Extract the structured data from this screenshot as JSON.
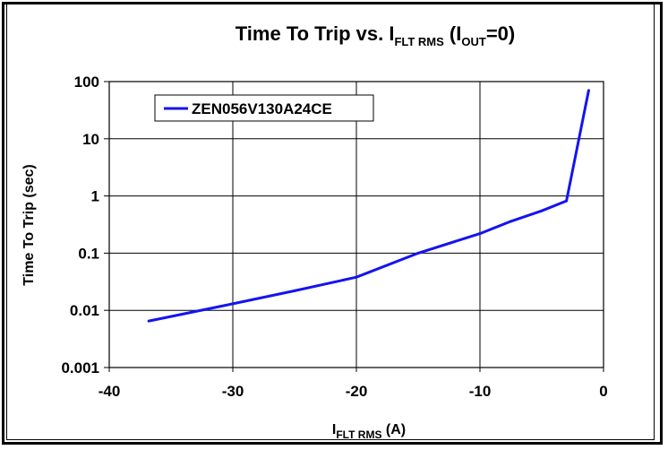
{
  "chart_data": {
    "type": "line",
    "title": {
      "main": "Time To Trip vs. I",
      "main_sub": "FLT RMS",
      "paren_open": " (I",
      "paren_sub": "OUT",
      "paren_close": "=0)"
    },
    "xlabel": {
      "main": "I",
      "sub": "FLT RMS",
      "unit": " (A)"
    },
    "ylabel": "Time To Trip (sec)",
    "xlim": [
      -40,
      0
    ],
    "ylim": [
      0.001,
      100
    ],
    "y_scale": "log",
    "x_ticks": [
      {
        "value": -40,
        "label": "-40"
      },
      {
        "value": -30,
        "label": "-30"
      },
      {
        "value": -20,
        "label": "-20"
      },
      {
        "value": -10,
        "label": "-10"
      },
      {
        "value": 0,
        "label": "0"
      }
    ],
    "y_ticks": [
      {
        "value": 0.001,
        "label": "0.001"
      },
      {
        "value": 0.01,
        "label": "0.01"
      },
      {
        "value": 0.1,
        "label": "0.1"
      },
      {
        "value": 1,
        "label": "1"
      },
      {
        "value": 10,
        "label": "10"
      },
      {
        "value": 100,
        "label": "100"
      }
    ],
    "grid": true,
    "legend_position": "top-left",
    "series": [
      {
        "name": "ZEN056V130A24CE",
        "color": "#1414f0",
        "points": [
          {
            "x": -36.8,
            "y": 0.0065
          },
          {
            "x": -30,
            "y": 0.013
          },
          {
            "x": -25,
            "y": 0.022
          },
          {
            "x": -20,
            "y": 0.038
          },
          {
            "x": -15,
            "y": 0.1
          },
          {
            "x": -10,
            "y": 0.22
          },
          {
            "x": -7.5,
            "y": 0.36
          },
          {
            "x": -5,
            "y": 0.55
          },
          {
            "x": -3,
            "y": 0.82
          },
          {
            "x": -1.2,
            "y": 70
          }
        ]
      }
    ]
  }
}
